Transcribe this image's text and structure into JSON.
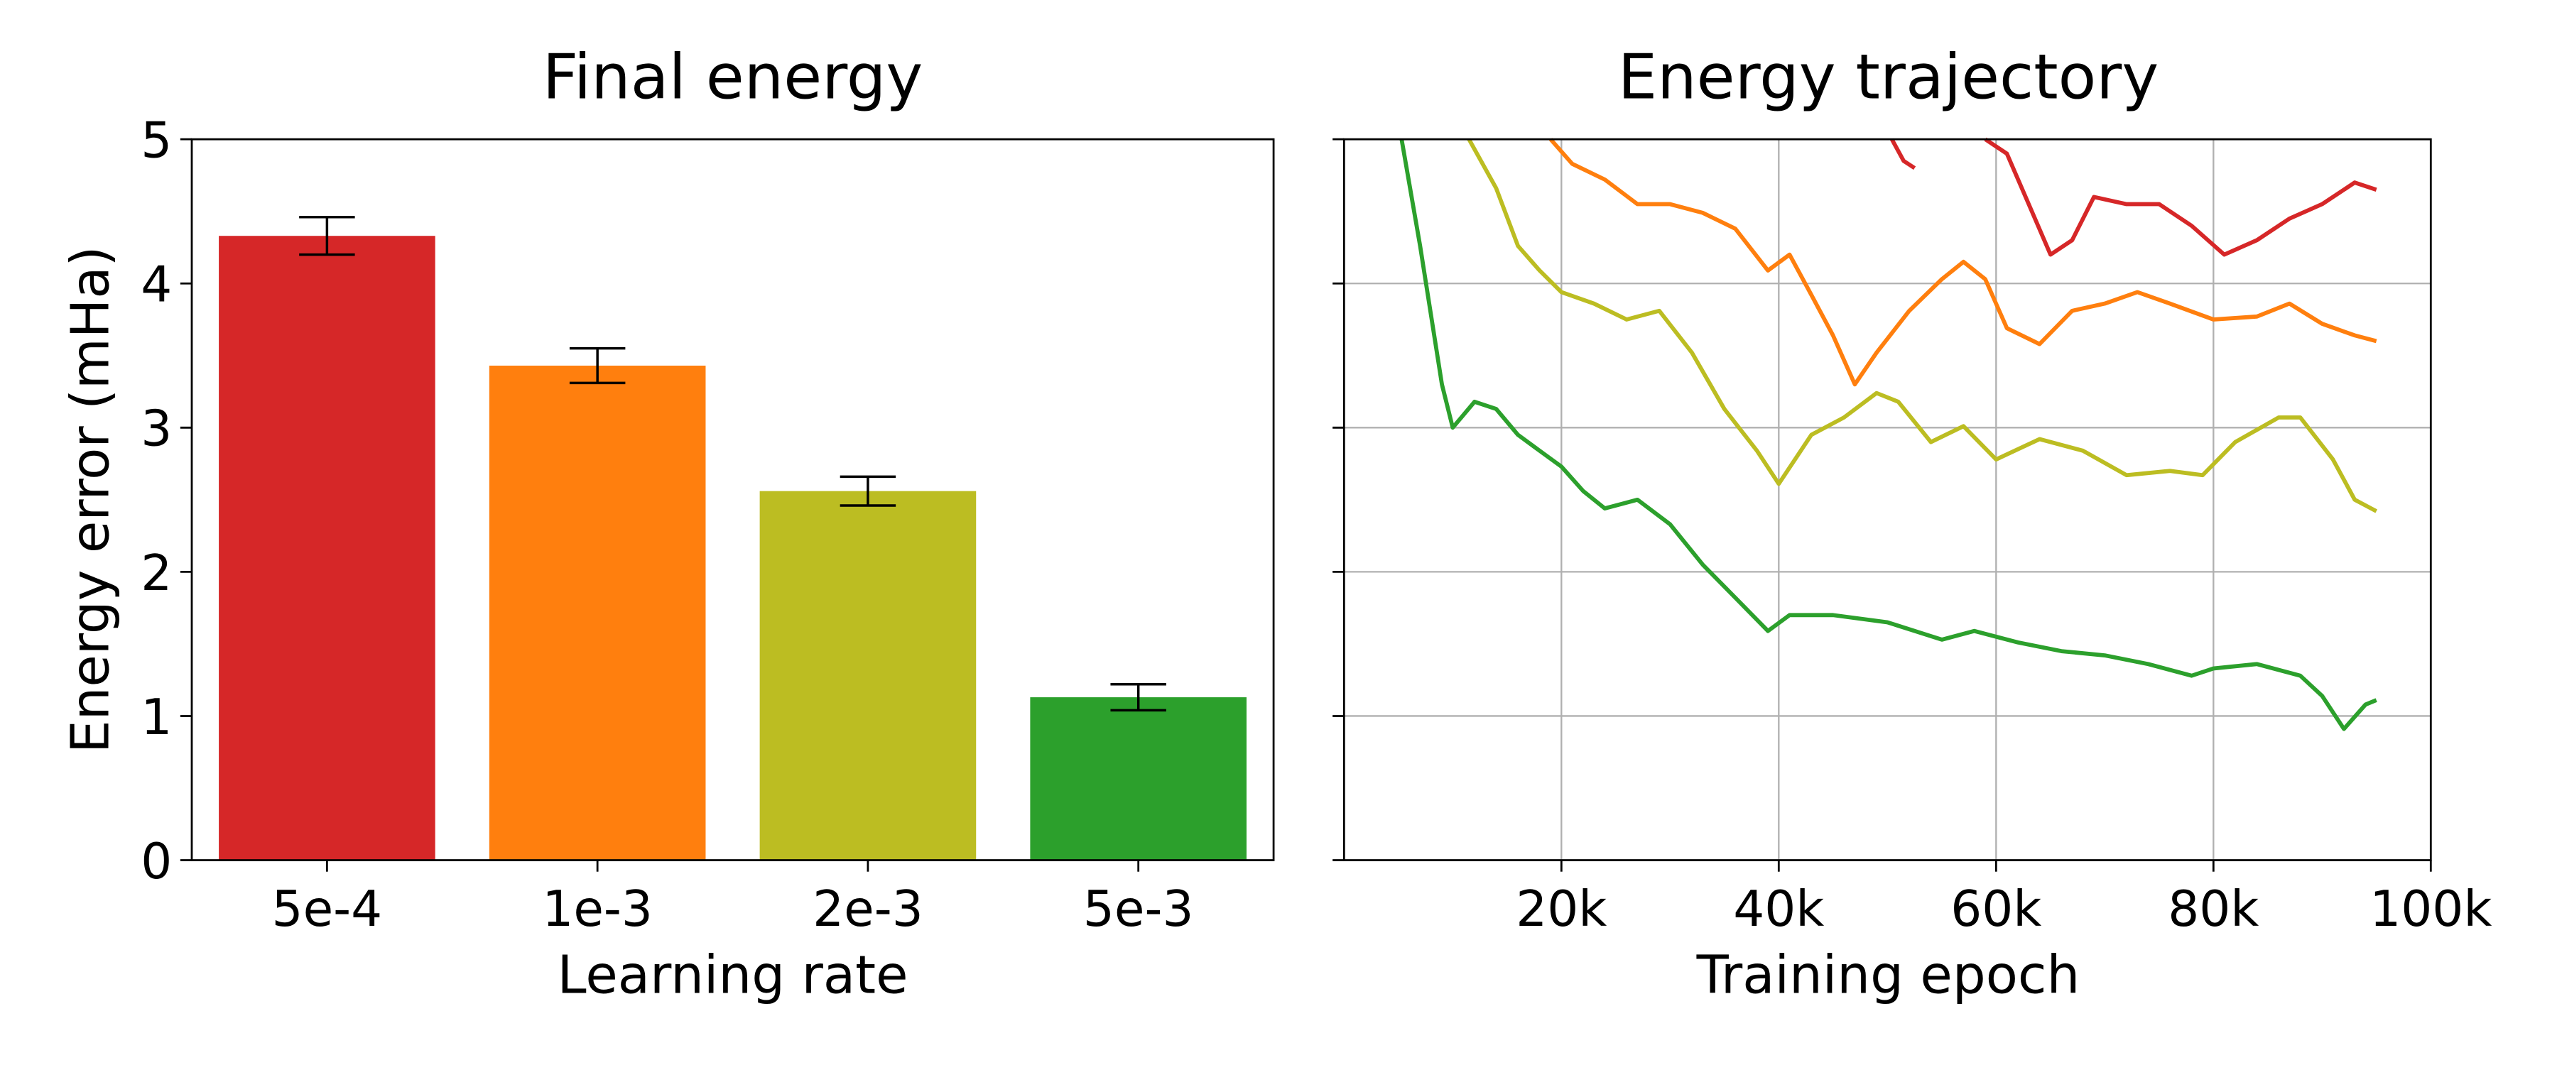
{
  "chart_data": [
    {
      "type": "bar",
      "title": "Final energy",
      "xlabel": "Learning rate",
      "ylabel": "Energy error (mHa)",
      "categories": [
        "5e-4",
        "1e-3",
        "2e-3",
        "5e-3"
      ],
      "values": [
        4.33,
        3.43,
        2.56,
        1.13
      ],
      "errors": [
        0.13,
        0.12,
        0.1,
        0.09
      ],
      "colors": [
        "#d62728",
        "#ff7f0e",
        "#bcbd22",
        "#2ca02c"
      ],
      "ylim": [
        0,
        5
      ],
      "yticks": [
        0,
        1,
        2,
        3,
        4,
        5
      ]
    },
    {
      "type": "line",
      "title": "Energy trajectory",
      "xlabel": "Training epoch",
      "xlim": [
        0,
        100000
      ],
      "xticks": [
        {
          "value": 20000,
          "label": "20k"
        },
        {
          "value": 40000,
          "label": "40k"
        },
        {
          "value": 60000,
          "label": "60k"
        },
        {
          "value": 80000,
          "label": "80k"
        },
        {
          "value": 100000,
          "label": "100k"
        }
      ],
      "ylim": [
        0,
        5
      ],
      "yticks": [
        0,
        1,
        2,
        3,
        4,
        5
      ],
      "grid": true,
      "series": [
        {
          "color": "#d62728",
          "x": [
            50400,
            51500,
            52500,
            56000,
            59000,
            61000,
            63000,
            65000,
            67000,
            69000,
            72000,
            75000,
            78000,
            81000,
            84000,
            87000,
            90000,
            93000,
            95000
          ],
          "values": [
            5.0,
            4.85,
            4.8,
            null,
            5.0,
            4.9,
            4.55,
            4.2,
            4.3,
            4.6,
            4.55,
            4.55,
            4.4,
            4.2,
            4.3,
            4.45,
            4.55,
            4.7,
            4.65
          ]
        },
        {
          "color": "#ff7f0e",
          "x": [
            19000,
            21000,
            24000,
            27000,
            30000,
            33000,
            36000,
            39000,
            41000,
            43000,
            45000,
            47000,
            49000,
            52000,
            55000,
            57000,
            59000,
            61000,
            64000,
            67000,
            70000,
            73000,
            76000,
            80000,
            84000,
            87000,
            90000,
            93000,
            95000
          ],
          "values": [
            5.0,
            4.83,
            4.72,
            4.55,
            4.55,
            4.49,
            4.38,
            4.09,
            4.2,
            3.92,
            3.64,
            3.3,
            3.52,
            3.81,
            4.03,
            4.15,
            4.03,
            3.69,
            3.58,
            3.81,
            3.86,
            3.94,
            3.86,
            3.75,
            3.77,
            3.86,
            3.72,
            3.64,
            3.6
          ]
        },
        {
          "color": "#bcbd22",
          "x": [
            11500,
            14000,
            16000,
            18000,
            20000,
            23000,
            26000,
            29000,
            32000,
            35000,
            38000,
            40000,
            43000,
            46000,
            49000,
            51000,
            54000,
            57000,
            60000,
            64000,
            68000,
            72000,
            76000,
            79000,
            82000,
            86000,
            88000,
            91000,
            93000,
            95000
          ],
          "values": [
            5.0,
            4.66,
            4.26,
            4.09,
            3.94,
            3.86,
            3.75,
            3.81,
            3.52,
            3.13,
            2.84,
            2.61,
            2.95,
            3.07,
            3.24,
            3.18,
            2.9,
            3.01,
            2.78,
            2.92,
            2.84,
            2.67,
            2.7,
            2.67,
            2.9,
            3.07,
            3.07,
            2.78,
            2.5,
            2.42
          ]
        },
        {
          "color": "#2ca02c",
          "x": [
            5300,
            7000,
            9000,
            10000,
            12000,
            14000,
            16000,
            18000,
            20000,
            22000,
            24000,
            27000,
            30000,
            33000,
            36000,
            39000,
            41000,
            45000,
            50000,
            55000,
            58000,
            62000,
            66000,
            70000,
            74000,
            78000,
            80000,
            84000,
            88000,
            90000,
            92000,
            94000,
            95000
          ],
          "values": [
            5.0,
            4.26,
            3.3,
            3.0,
            3.18,
            3.13,
            2.95,
            2.84,
            2.73,
            2.56,
            2.44,
            2.5,
            2.33,
            2.05,
            1.82,
            1.59,
            1.7,
            1.7,
            1.65,
            1.53,
            1.59,
            1.51,
            1.45,
            1.42,
            1.36,
            1.28,
            1.33,
            1.36,
            1.28,
            1.14,
            0.91,
            1.08,
            1.11
          ]
        }
      ]
    }
  ]
}
